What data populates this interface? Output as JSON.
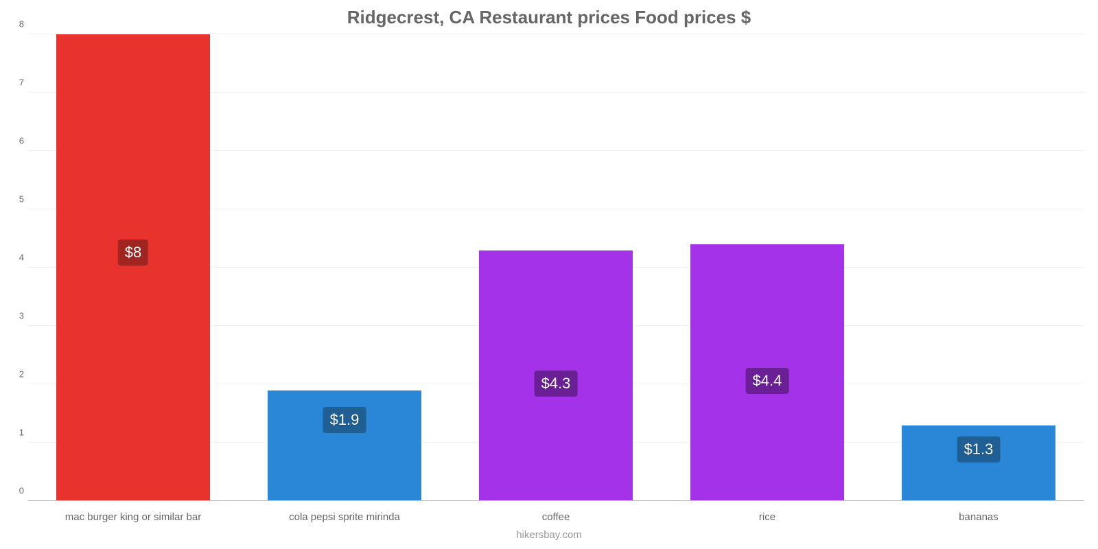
{
  "chart": {
    "type": "bar",
    "title": "Ridgecrest, CA Restaurant prices Food prices $",
    "title_fontsize": 26,
    "title_color": "#666666",
    "background_color": "#ffffff",
    "grid_color": "#f2f2f2",
    "baseline_color": "#c0c0c0",
    "ylim": [
      0,
      8
    ],
    "yticks": [
      0,
      1,
      2,
      3,
      4,
      5,
      6,
      7,
      8
    ],
    "ytick_color": "#666666",
    "ytick_fontsize": 13,
    "bar_width_pct": 73,
    "xlabel_fontsize": 15,
    "xlabel_color": "#666666",
    "value_label_fontsize": 22,
    "caption": "hikersbay.com",
    "caption_color": "#999999",
    "caption_fontsize": 15,
    "categories": [
      "mac burger king or similar bar",
      "cola pepsi sprite mirinda",
      "coffee",
      "rice",
      "bananas"
    ],
    "values": [
      8,
      1.9,
      4.3,
      4.4,
      1.3
    ],
    "value_labels": [
      "$8",
      "$1.9",
      "$4.3",
      "$4.4",
      "$1.3"
    ],
    "bar_colors": [
      "#e8322d",
      "#2a87d8",
      "#a432e8",
      "#a432e8",
      "#2a87d8"
    ],
    "badge_colors": [
      "#a02420",
      "#1f5f94",
      "#6a1f94",
      "#6a1f94",
      "#1f5f94"
    ]
  }
}
